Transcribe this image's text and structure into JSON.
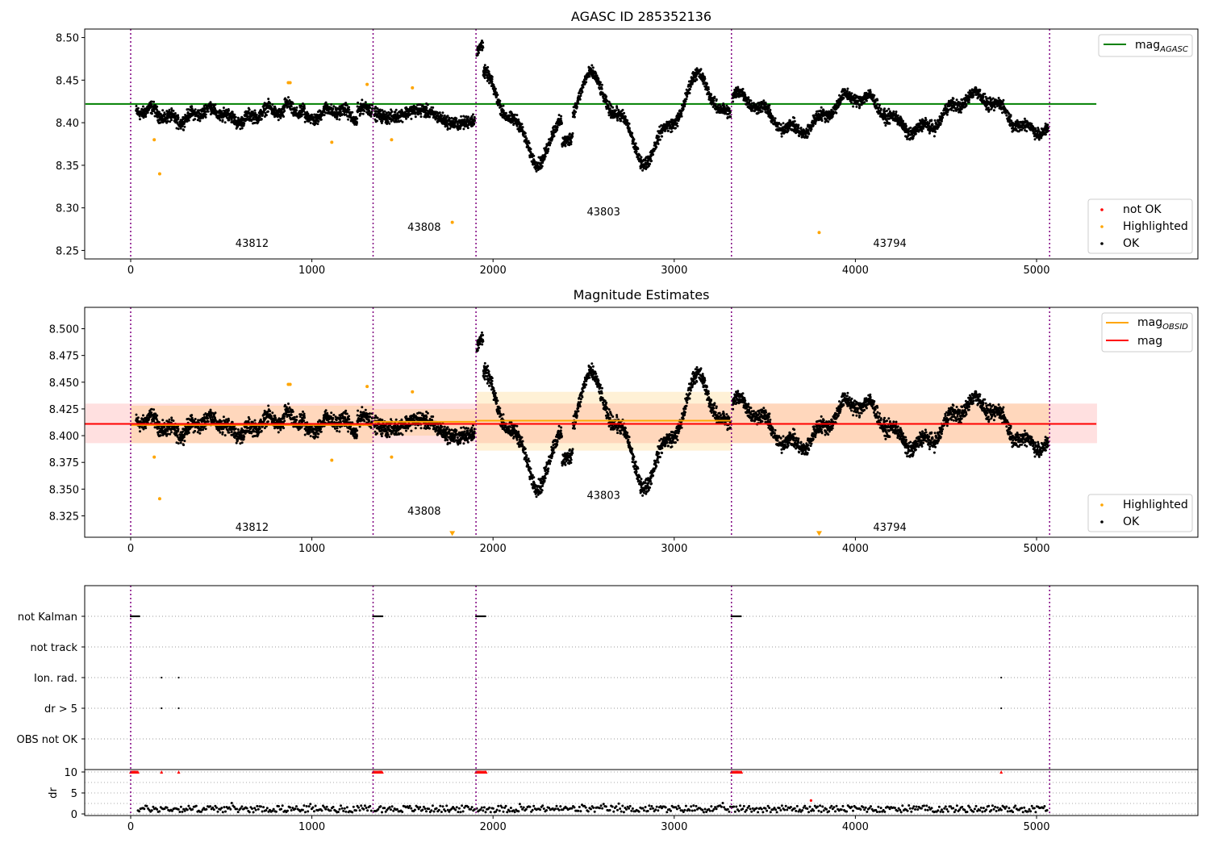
{
  "chart_data": [
    {
      "type": "scatter",
      "title": "AGASC ID 285352136",
      "xlim": [
        -250,
        5900
      ],
      "ylim": [
        8.24,
        8.51
      ],
      "xticks": [
        0,
        1000,
        2000,
        3000,
        4000,
        5000
      ],
      "yticks": [
        8.25,
        8.3,
        8.35,
        8.4,
        8.45,
        8.5
      ],
      "reference_line": {
        "label": "mag_{AGASC}",
        "value": 8.422,
        "x_range": [
          -250,
          5330
        ],
        "color": "#008000"
      },
      "legend_top": [
        {
          "label": "mag",
          "sub": "AGASC",
          "color": "#008000"
        }
      ],
      "legend_bottom": [
        {
          "label": "not OK",
          "color": "#ff0000"
        },
        {
          "label": "Highlighted",
          "color": "#ffa500"
        },
        {
          "label": "OK",
          "color": "#000000"
        }
      ],
      "obsid_boundaries": [
        0,
        1338,
        1906,
        3316,
        5072
      ],
      "obsid_labels": [
        {
          "text": "43812",
          "x": 670,
          "y": 8.254
        },
        {
          "text": "43808",
          "x": 1620,
          "y": 8.273
        },
        {
          "text": "43803",
          "x": 2610,
          "y": 8.291
        },
        {
          "text": "43794",
          "x": 4190,
          "y": 8.254
        }
      ],
      "series": [
        {
          "name": "OK",
          "color": "#000000",
          "segments": [
            {
              "x_range": [
                30,
                1335
              ],
              "mean": 8.41,
              "points": 1300
            },
            {
              "x_range": [
                1345,
                1900
              ],
              "mean": 8.413,
              "points": 560
            },
            {
              "x_range": [
                1910,
                3312
              ],
              "mean": 8.414,
              "points": 1400
            },
            {
              "x_range": [
                3322,
                5065
              ],
              "mean": 8.411,
              "points": 1700
            }
          ]
        },
        {
          "name": "Highlighted",
          "color": "#ffa500",
          "points": [
            [
              130,
              8.38
            ],
            [
              160,
              8.34
            ],
            [
              870,
              8.447
            ],
            [
              880,
              8.447
            ],
            [
              1110,
              8.377
            ],
            [
              1305,
              8.445
            ],
            [
              1440,
              8.38
            ],
            [
              1555,
              8.441
            ],
            [
              1775,
              8.283
            ],
            [
              3800,
              8.271
            ]
          ]
        }
      ]
    },
    {
      "type": "scatter",
      "title": "Magnitude Estimates",
      "xlim": [
        -250,
        5900
      ],
      "ylim": [
        8.305,
        8.52
      ],
      "xticks": [
        0,
        1000,
        2000,
        3000,
        4000,
        5000
      ],
      "yticks": [
        8.325,
        8.35,
        8.375,
        8.4,
        8.425,
        8.45,
        8.475,
        8.5
      ],
      "mag_line": {
        "label": "mag",
        "value": 8.411,
        "x_range": [
          -250,
          5330
        ],
        "color": "#ff0000",
        "band": [
          8.393,
          8.43
        ]
      },
      "mag_obsid": [
        {
          "x_range": [
            0,
            1338
          ],
          "value": 8.41,
          "band": [
            8.393,
            8.428
          ]
        },
        {
          "x_range": [
            1338,
            1906
          ],
          "value": 8.413,
          "band": [
            8.4,
            8.425
          ]
        },
        {
          "x_range": [
            1906,
            3316
          ],
          "value": 8.414,
          "band": [
            8.386,
            8.441
          ]
        },
        {
          "x_range": [
            3316,
            5072
          ],
          "value": 8.411,
          "band": [
            8.393,
            8.43
          ]
        }
      ],
      "legend_top": [
        {
          "label": "mag",
          "sub": "OBSID",
          "color": "#ffa500"
        },
        {
          "label": "mag",
          "sub": "",
          "color": "#ff0000"
        }
      ],
      "legend_bottom": [
        {
          "label": "Highlighted",
          "color": "#ffa500"
        },
        {
          "label": "OK",
          "color": "#000000"
        }
      ],
      "obsid_boundaries": [
        0,
        1338,
        1906,
        3316,
        5072
      ],
      "obsid_labels": [
        {
          "text": "43812",
          "x": 670,
          "y": 8.311
        },
        {
          "text": "43808",
          "x": 1620,
          "y": 8.326
        },
        {
          "text": "43803",
          "x": 2610,
          "y": 8.341
        },
        {
          "text": "43794",
          "x": 4190,
          "y": 8.311
        }
      ],
      "offscale_markers": [
        [
          1775,
          8.307
        ],
        [
          3800,
          8.307
        ]
      ],
      "highlighted_points": [
        [
          130,
          8.38
        ],
        [
          160,
          8.341
        ],
        [
          870,
          8.448
        ],
        [
          880,
          8.448
        ],
        [
          1110,
          8.377
        ],
        [
          1305,
          8.446
        ],
        [
          1440,
          8.38
        ],
        [
          1555,
          8.441
        ]
      ]
    },
    {
      "type": "scatter",
      "title": "",
      "xlim": [
        -250,
        5900
      ],
      "xticks": [
        0,
        1000,
        2000,
        3000,
        4000,
        5000
      ],
      "flag_categories": [
        "not Kalman",
        "not track",
        "Ion. rad.",
        "dr > 5",
        "OBS not OK"
      ],
      "flag_points": {
        "not Kalman": [
          [
            0,
            50
          ],
          [
            1338,
            1390
          ],
          [
            1906,
            1960
          ],
          [
            3316,
            3370
          ]
        ],
        "not track": [],
        "Ion. rad.": [
          170,
          265,
          4805
        ],
        "dr > 5": [
          170,
          265,
          4805
        ],
        "OBS not OK": []
      },
      "dr": {
        "ylabel": "dr",
        "yticks": [
          0,
          5,
          10
        ],
        "clipped_at": 10,
        "clipped_x": [
          [
            0,
            40
          ],
          [
            1338,
            1390
          ],
          [
            1906,
            1965
          ],
          [
            3316,
            3375
          ],
          [
            170
          ],
          [
            265
          ],
          [
            4805
          ]
        ],
        "red_points": [
          [
            3755,
            3.2
          ]
        ],
        "typical_range": [
          0.3,
          2.5
        ]
      }
    }
  ]
}
